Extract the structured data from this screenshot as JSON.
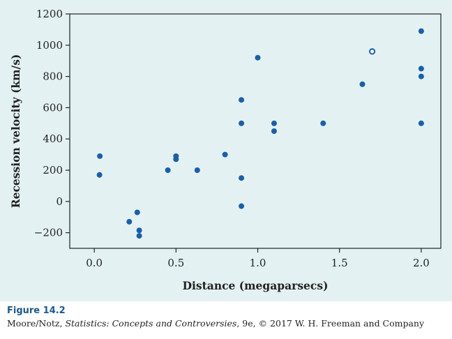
{
  "chart_data": {
    "type": "scatter",
    "xlabel": "Distance (megaparsecs)",
    "ylabel": "Recession velocity (km/s)",
    "xlim": [
      -0.15,
      2.12
    ],
    "ylim": [
      -300,
      1200
    ],
    "x_ticks": [
      0.0,
      0.5,
      1.0,
      1.5,
      2.0
    ],
    "x_tick_labels": [
      "0.0",
      "0.5",
      "1.0",
      "1.5",
      "2.0"
    ],
    "y_ticks": [
      -200,
      0,
      200,
      400,
      600,
      800,
      1000,
      1200
    ],
    "y_tick_labels": [
      "−200",
      "0",
      "200",
      "400",
      "600",
      "800",
      "1000",
      "1200"
    ],
    "grid": false,
    "point_color": "#1a5fa8",
    "points": [
      {
        "x": 0.032,
        "y": 170
      },
      {
        "x": 0.034,
        "y": 290
      },
      {
        "x": 0.214,
        "y": -130
      },
      {
        "x": 0.263,
        "y": -70
      },
      {
        "x": 0.275,
        "y": -185
      },
      {
        "x": 0.275,
        "y": -220
      },
      {
        "x": 0.45,
        "y": 200
      },
      {
        "x": 0.5,
        "y": 290
      },
      {
        "x": 0.5,
        "y": 270
      },
      {
        "x": 0.63,
        "y": 200
      },
      {
        "x": 0.8,
        "y": 300
      },
      {
        "x": 0.9,
        "y": -30
      },
      {
        "x": 0.9,
        "y": 650
      },
      {
        "x": 0.9,
        "y": 150
      },
      {
        "x": 0.9,
        "y": 500
      },
      {
        "x": 1.0,
        "y": 920
      },
      {
        "x": 1.1,
        "y": 450
      },
      {
        "x": 1.1,
        "y": 500
      },
      {
        "x": 1.4,
        "y": 500
      },
      {
        "x": 1.64,
        "y": 750
      },
      {
        "x": 1.7,
        "y": 960,
        "open": true
      },
      {
        "x": 2.0,
        "y": 500
      },
      {
        "x": 2.0,
        "y": 800
      },
      {
        "x": 2.0,
        "y": 850
      },
      {
        "x": 2.0,
        "y": 1090
      }
    ]
  },
  "caption": {
    "figure_number": "Figure 14.2",
    "credit_authors": "Moore/Notz, ",
    "credit_title": "Statistics: Concepts and Controversies",
    "credit_rest": ", 9e, © 2017 W. H. Freeman and Company"
  }
}
